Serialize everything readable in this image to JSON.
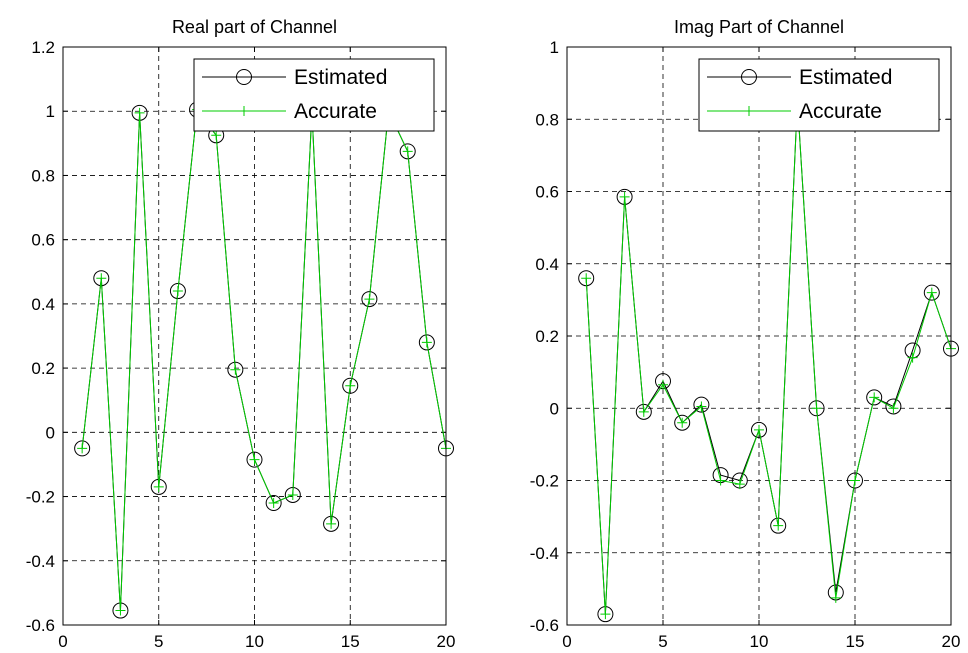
{
  "chart_data": [
    {
      "type": "line",
      "title": "Real part of Channel",
      "xlim": [
        0,
        20
      ],
      "ylim": [
        -0.6,
        1.2
      ],
      "xticks": [
        0,
        5,
        10,
        15,
        20
      ],
      "yticks": [
        -0.6,
        -0.4,
        -0.2,
        0,
        0.2,
        0.4,
        0.6,
        0.8,
        1,
        1.2
      ],
      "xtick_labels": [
        "0",
        "5",
        "10",
        "15",
        "20"
      ],
      "ytick_labels": [
        "-0.6",
        "-0.4",
        "-0.2",
        "0",
        "0.2",
        "0.4",
        "0.6",
        "0.8",
        "1",
        "1.2"
      ],
      "grid": true,
      "legend_position": "top-right",
      "x": [
        1,
        2,
        3,
        4,
        5,
        6,
        7,
        8,
        9,
        10,
        11,
        12,
        13,
        14,
        15,
        16,
        17,
        18,
        19,
        20
      ],
      "series": [
        {
          "name": "Estimated",
          "color": "#000000",
          "marker": "circle",
          "values": [
            -0.05,
            0.48,
            -0.555,
            0.995,
            -0.17,
            0.44,
            1.005,
            0.925,
            0.195,
            -0.085,
            -0.22,
            -0.195,
            1.0,
            -0.285,
            0.145,
            0.415,
            1.0,
            0.875,
            0.28,
            -0.05
          ]
        },
        {
          "name": "Accurate",
          "color": "#00cc00",
          "marker": "plus",
          "values": [
            -0.05,
            0.48,
            -0.555,
            0.995,
            -0.17,
            0.44,
            1.005,
            0.925,
            0.195,
            -0.085,
            -0.22,
            -0.195,
            1.0,
            -0.285,
            0.145,
            0.415,
            1.0,
            0.875,
            0.28,
            -0.05
          ]
        }
      ]
    },
    {
      "type": "line",
      "title": "Imag Part of Channel",
      "xlim": [
        0,
        20
      ],
      "ylim": [
        -0.6,
        1
      ],
      "xticks": [
        0,
        5,
        10,
        15,
        20
      ],
      "yticks": [
        -0.6,
        -0.4,
        -0.2,
        0,
        0.2,
        0.4,
        0.6,
        0.8,
        1
      ],
      "xtick_labels": [
        "0",
        "5",
        "10",
        "15",
        "20"
      ],
      "ytick_labels": [
        "-0.6",
        "-0.4",
        "-0.2",
        "0",
        "0.2",
        "0.4",
        "0.6",
        "0.8",
        "1"
      ],
      "grid": true,
      "legend_position": "top-right",
      "x": [
        1,
        2,
        3,
        4,
        5,
        6,
        7,
        8,
        9,
        10,
        11,
        12,
        13,
        14,
        15,
        16,
        17,
        18,
        19,
        20
      ],
      "series": [
        {
          "name": "Estimated",
          "color": "#000000",
          "marker": "circle",
          "values": [
            0.36,
            -0.57,
            0.585,
            -0.01,
            0.075,
            -0.04,
            0.01,
            -0.185,
            -0.2,
            -0.06,
            -0.325,
            0.85,
            0.0,
            -0.51,
            -0.2,
            0.03,
            0.005,
            0.16,
            0.32,
            0.165
          ]
        },
        {
          "name": "Accurate",
          "color": "#00cc00",
          "marker": "plus",
          "values": [
            0.36,
            -0.57,
            0.585,
            -0.01,
            0.065,
            -0.04,
            0.005,
            -0.2,
            -0.21,
            -0.06,
            -0.325,
            0.85,
            0.0,
            -0.525,
            -0.2,
            0.03,
            0.0,
            0.14,
            0.32,
            0.165
          ]
        }
      ]
    }
  ]
}
